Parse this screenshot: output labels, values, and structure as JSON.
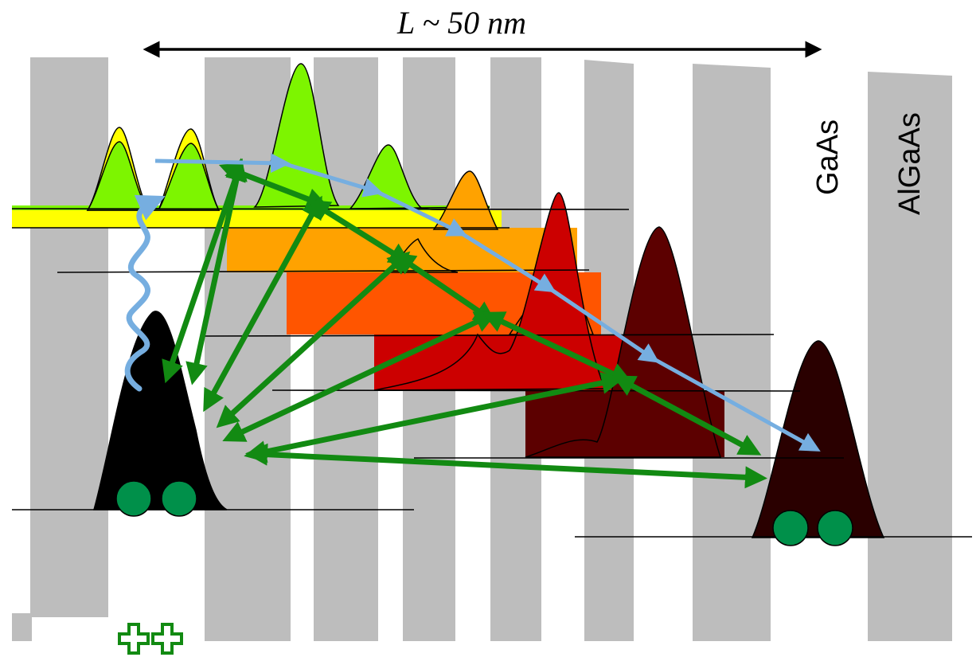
{
  "length_label": "L ~ 50 nm",
  "materials": {
    "well": "GaAs",
    "barrier": "AlGaAs"
  },
  "colors": {
    "barrier": "#bdbdbd",
    "tunneling_arrow": "#128a12",
    "relaxation_arrow": "#76aee0",
    "photon": "#76aee0",
    "carrier": "#00904a",
    "hole_plus": "#128a12",
    "ground_state": "#000000",
    "final_state": "#2a0000",
    "levels": [
      "#ffff00",
      "#7df500",
      "#ffa200",
      "#ff5500",
      "#cc0000",
      "#5c0000"
    ]
  },
  "icons": {
    "photon": "wavy-arrow-icon",
    "holes": "plus-icon",
    "carriers": "circle-icon"
  }
}
